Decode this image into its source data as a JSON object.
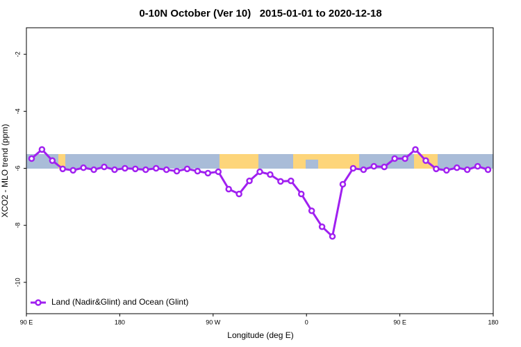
{
  "chart_data": {
    "type": "line",
    "title": "0-10N October (Ver 10)   2015-01-01 to 2020-12-18",
    "x_label": "Longitude (deg E)",
    "y_label": "XCO2 - MLO trend (ppm)",
    "x": [
      95,
      105,
      115,
      125,
      135,
      145,
      155,
      165,
      175,
      185,
      195,
      205,
      215,
      225,
      235,
      245,
      255,
      265,
      275,
      285,
      295,
      305,
      315,
      325,
      335,
      345,
      355,
      365,
      375,
      385,
      395,
      405,
      415,
      425,
      435,
      445,
      455,
      465,
      475,
      485,
      495,
      505,
      515,
      525,
      535
    ],
    "series": [
      {
        "name": "Land (Nadir&Glint) and Ocean (Glint)",
        "color": "#a020f0",
        "values": [
          -5.66,
          -5.34,
          -5.73,
          -6.02,
          -6.07,
          -5.98,
          -6.05,
          -5.95,
          -6.05,
          -6.0,
          -6.02,
          -6.05,
          -6.0,
          -6.05,
          -6.1,
          -6.02,
          -6.1,
          -6.17,
          -6.12,
          -6.73,
          -6.9,
          -6.44,
          -6.12,
          -6.22,
          -6.46,
          -6.44,
          -6.9,
          -7.49,
          -8.05,
          -8.39,
          -6.56,
          -6.0,
          -6.05,
          -5.93,
          -5.95,
          -5.66,
          -5.66,
          -5.34,
          -5.73,
          -6.02,
          -6.07,
          -5.98,
          -6.05,
          -5.93,
          -6.05
        ]
      }
    ],
    "xlim": [
      90,
      540
    ],
    "xticks": [
      {
        "value": 90,
        "label": "90 E"
      },
      {
        "value": 180,
        "label": "180"
      },
      {
        "value": 270,
        "label": "90 W"
      },
      {
        "value": 360,
        "label": "0"
      },
      {
        "value": 450,
        "label": "90 E"
      },
      {
        "value": 540,
        "label": "180"
      }
    ],
    "ylim": [
      -11.1,
      -1.07
    ],
    "yticks": [
      -2,
      -4,
      -6,
      -8,
      -10
    ],
    "legend": "bottom-left"
  }
}
